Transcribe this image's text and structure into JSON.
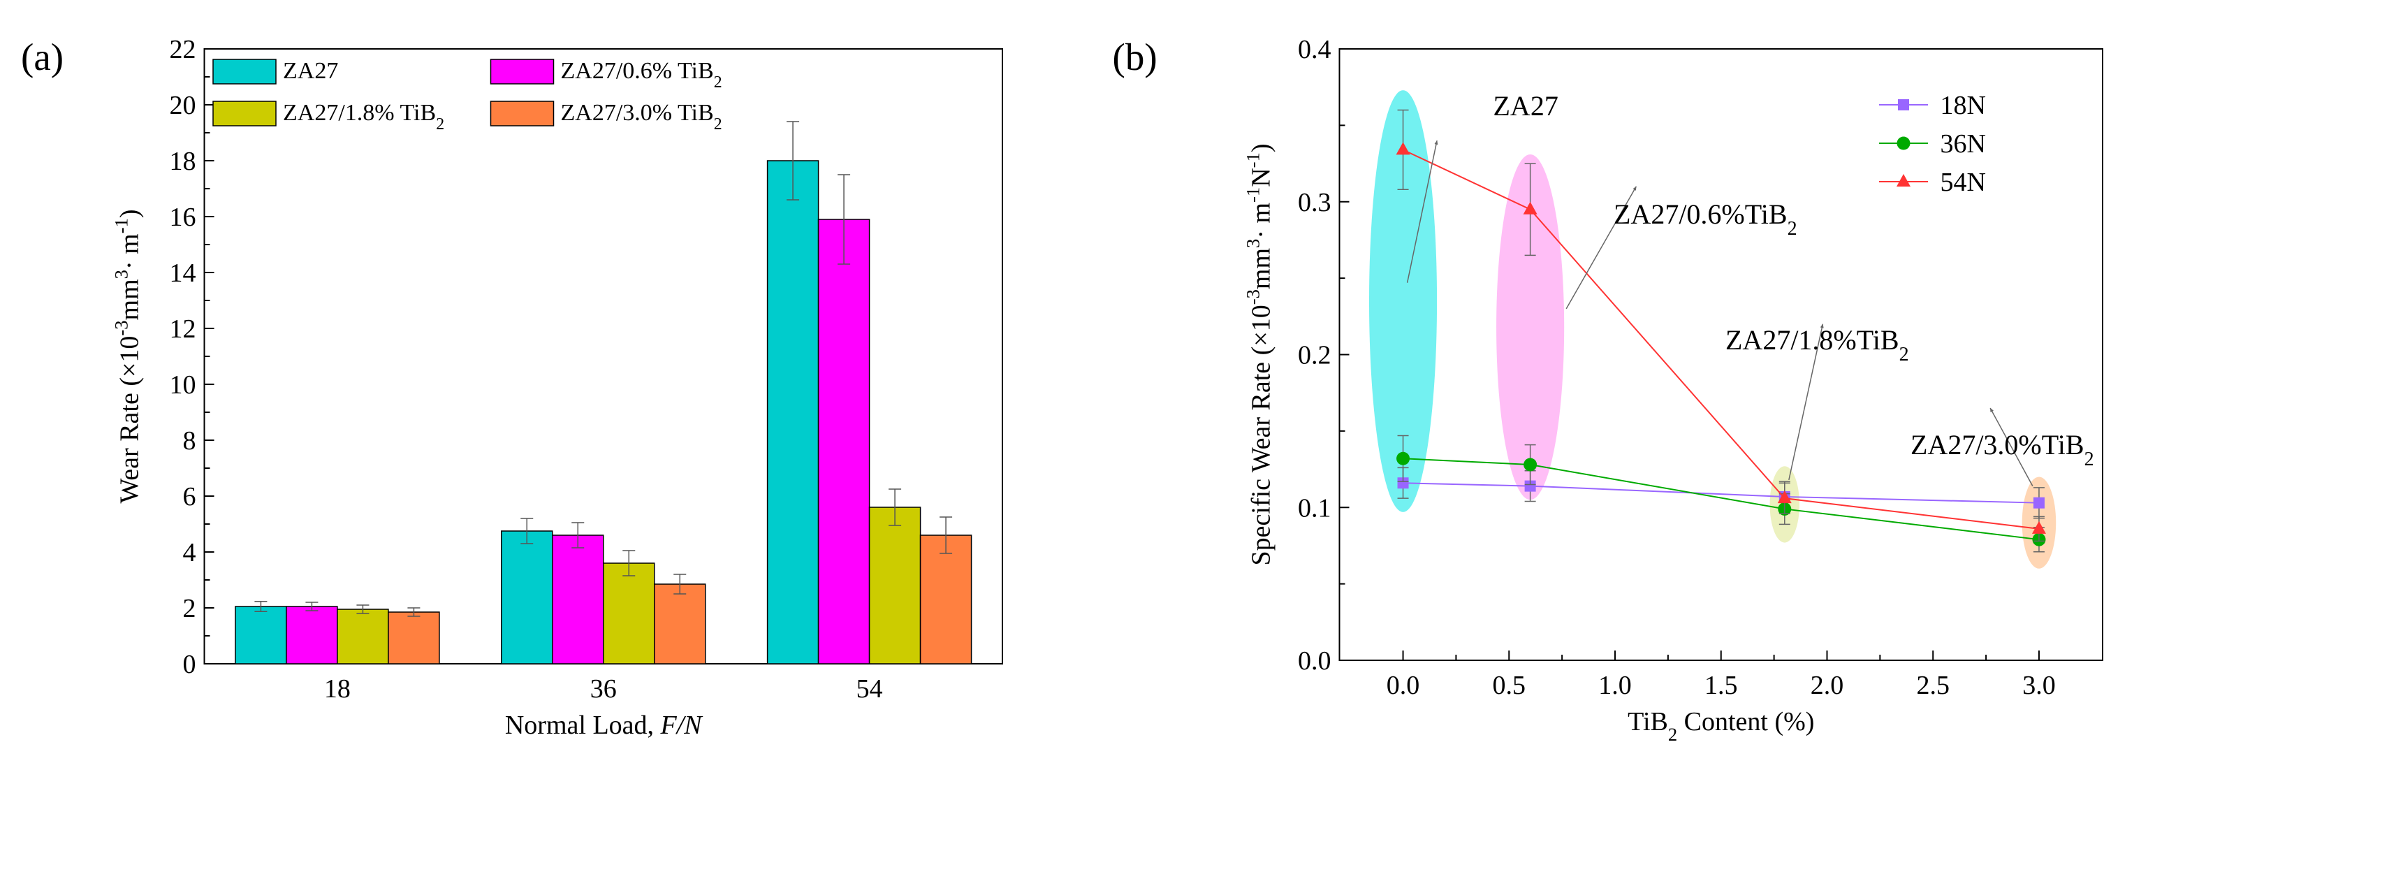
{
  "panel_labels": [
    "(a)",
    "(b)"
  ],
  "chart_data": [
    {
      "type": "bar",
      "panel": "(a)",
      "categories": [
        "18",
        "36",
        "54"
      ],
      "xlabel": "Normal Load, ",
      "xlabel_italic": "F/N",
      "ylabel_parts": [
        "Wear Rate (×10",
        "-3",
        "mm",
        "3",
        "· m",
        "-1",
        ")"
      ],
      "ylim": [
        0,
        22
      ],
      "yticks": [
        0,
        2,
        4,
        6,
        8,
        10,
        12,
        14,
        16,
        18,
        20,
        22
      ],
      "legend_position": "top",
      "series": [
        {
          "name": "ZA27",
          "base": "ZA27",
          "sub": "",
          "color": "#00CCCC",
          "values": [
            2.05,
            4.75,
            18.0
          ],
          "errors": [
            0.18,
            0.45,
            1.4
          ]
        },
        {
          "name": "ZA27/0.6% TiB2",
          "base": "ZA27/0.6% TiB",
          "sub": "2",
          "color": "#FF00FF",
          "values": [
            2.05,
            4.6,
            15.9
          ],
          "errors": [
            0.15,
            0.45,
            1.6
          ]
        },
        {
          "name": "ZA27/1.8% TiB2",
          "base": "ZA27/1.8% TiB",
          "sub": "2",
          "color": "#CCCC00",
          "values": [
            1.95,
            3.6,
            5.6
          ],
          "errors": [
            0.15,
            0.45,
            0.65
          ]
        },
        {
          "name": "ZA27/3.0% TiB2",
          "base": "ZA27/3.0% TiB",
          "sub": "2",
          "color": "#FF8040",
          "values": [
            1.85,
            2.85,
            4.6
          ],
          "errors": [
            0.15,
            0.35,
            0.65
          ]
        }
      ]
    },
    {
      "type": "line",
      "panel": "(b)",
      "x": [
        0.0,
        0.6,
        1.8,
        3.0
      ],
      "xlim": [
        -0.3,
        3.3
      ],
      "xticks": [
        0.0,
        0.5,
        1.0,
        1.5,
        2.0,
        2.5,
        3.0
      ],
      "xtick_labels": [
        "0.0",
        "0.5",
        "1.0",
        "1.5",
        "2.0",
        "2.5",
        "3.0"
      ],
      "ylim": [
        0.0,
        0.4
      ],
      "yticks": [
        0.0,
        0.1,
        0.2,
        0.3,
        0.4
      ],
      "ytick_labels": [
        "0.0",
        "0.1",
        "0.2",
        "0.3",
        "0.4"
      ],
      "xlabel_parts": [
        "TiB",
        "2",
        " Content (%)"
      ],
      "ylabel_parts": [
        "Specific Wear Rate (×10",
        "-3",
        "mm",
        "3",
        "· m",
        "-1",
        "N",
        "-1",
        ")"
      ],
      "legend_position": "top-right",
      "series": [
        {
          "name": "18N",
          "marker": "square",
          "color": "#9966FF",
          "values": [
            0.116,
            0.114,
            0.107,
            0.103
          ],
          "errors": [
            0.01,
            0.01,
            0.01,
            0.01
          ]
        },
        {
          "name": "36N",
          "marker": "circle",
          "color": "#00AA00",
          "values": [
            0.132,
            0.128,
            0.099,
            0.079
          ],
          "errors": [
            0.015,
            0.013,
            0.01,
            0.008
          ]
        },
        {
          "name": "54N",
          "marker": "triangle",
          "color": "#FF3333",
          "values": [
            0.334,
            0.295,
            0.106,
            0.086
          ],
          "errors": [
            0.026,
            0.03,
            0.01,
            0.008
          ]
        }
      ],
      "highlight_ellipses": [
        {
          "x": 0.0,
          "y_center": 0.235,
          "y_half": 0.138,
          "x_half": 0.16,
          "color": "#00E5E5"
        },
        {
          "x": 0.6,
          "y_center": 0.218,
          "y_half": 0.113,
          "x_half": 0.16,
          "color": "#FF88EE"
        },
        {
          "x": 1.8,
          "y_center": 0.102,
          "y_half": 0.025,
          "x_half": 0.07,
          "color": "#DDE58A"
        },
        {
          "x": 3.0,
          "y_center": 0.09,
          "y_half": 0.03,
          "x_half": 0.08,
          "color": "#FFB577"
        }
      ],
      "annotations": [
        {
          "base": "ZA27",
          "sub": "",
          "x": 0.02,
          "y": 0.247,
          "tx": 0.16,
          "ty": 0.34
        },
        {
          "base": "ZA27/0.6%TiB",
          "sub": "2",
          "x": 0.77,
          "y": 0.23,
          "tx": 1.1,
          "ty": 0.31
        },
        {
          "base": "ZA27/1.8%TiB",
          "sub": "2",
          "x": 1.82,
          "y": 0.118,
          "tx": 1.98,
          "ty": 0.22
        },
        {
          "base": "ZA27/3.0%TiB",
          "sub": "2",
          "x": 2.97,
          "y": 0.114,
          "tx": 2.77,
          "ty": 0.165
        }
      ]
    }
  ]
}
